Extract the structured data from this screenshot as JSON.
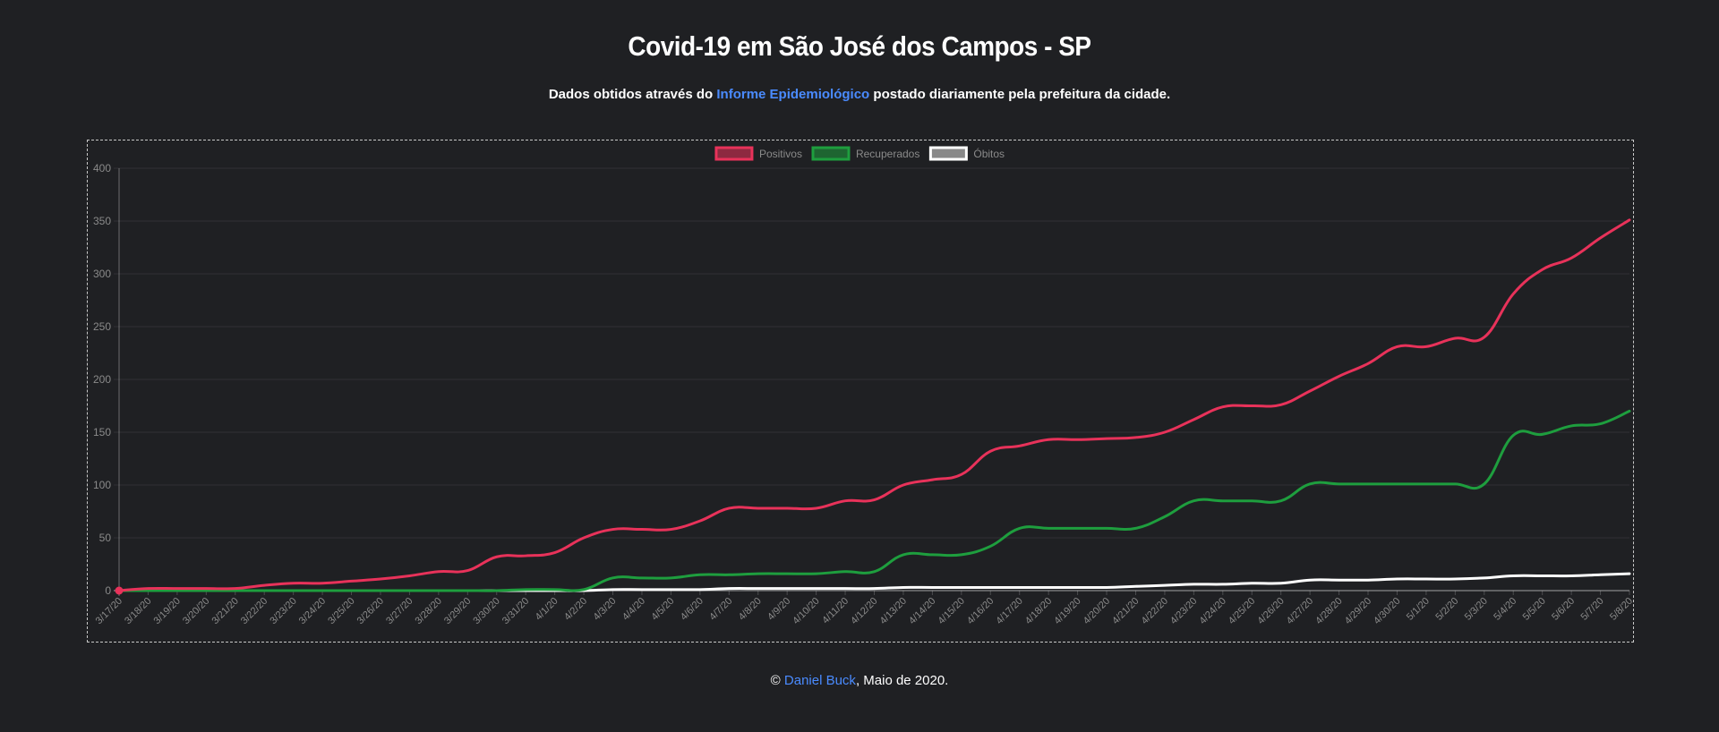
{
  "header": {
    "title": "Covid-19 em São José dos Campos - SP",
    "subtitle_prefix": "Dados obtidos através do ",
    "subtitle_link": "Informe Epidemiológico",
    "subtitle_suffix": " postado diariamente pela prefeitura da cidade."
  },
  "footer": {
    "copyright": "© ",
    "author": "Daniel Buck",
    "date_text": ", Maio de 2020."
  },
  "colors": {
    "background": "#1f2023",
    "link": "#4a8bff",
    "positivos": "#e8325a",
    "recuperados": "#1e9e3e",
    "obitos": "#ffffff"
  },
  "chart_data": {
    "type": "line",
    "title": "",
    "xlabel": "",
    "ylabel": "",
    "ylim": [
      0,
      400
    ],
    "yticks": [
      0,
      50,
      100,
      150,
      200,
      250,
      300,
      350,
      400
    ],
    "grid": true,
    "legend_position": "top-center",
    "categories": [
      "3/17/20",
      "3/18/20",
      "3/19/20",
      "3/20/20",
      "3/21/20",
      "3/22/20",
      "3/23/20",
      "3/24/20",
      "3/25/20",
      "3/26/20",
      "3/27/20",
      "3/28/20",
      "3/29/20",
      "3/30/20",
      "3/31/20",
      "4/1/20",
      "4/2/20",
      "4/3/20",
      "4/4/20",
      "4/5/20",
      "4/6/20",
      "4/7/20",
      "4/8/20",
      "4/9/20",
      "4/10/20",
      "4/11/20",
      "4/12/20",
      "4/13/20",
      "4/14/20",
      "4/15/20",
      "4/16/20",
      "4/17/20",
      "4/18/20",
      "4/19/20",
      "4/20/20",
      "4/21/20",
      "4/22/20",
      "4/23/20",
      "4/24/20",
      "4/25/20",
      "4/26/20",
      "4/27/20",
      "4/28/20",
      "4/29/20",
      "4/30/20",
      "5/1/20",
      "5/2/20",
      "5/3/20",
      "5/4/20",
      "5/5/20",
      "5/6/20",
      "5/7/20",
      "5/8/20"
    ],
    "series": [
      {
        "name": "Positivos",
        "color": "#e8325a",
        "values": [
          0,
          2,
          2,
          2,
          2,
          5,
          7,
          7,
          9,
          11,
          14,
          18,
          19,
          32,
          33,
          36,
          50,
          58,
          58,
          58,
          66,
          78,
          78,
          78,
          78,
          85,
          86,
          100,
          105,
          110,
          132,
          137,
          143,
          143,
          144,
          145,
          150,
          162,
          174,
          175,
          176,
          189,
          203,
          215,
          231,
          231,
          239,
          240,
          281,
          304,
          315,
          334,
          351
        ]
      },
      {
        "name": "Recuperados",
        "color": "#1e9e3e",
        "values": [
          0,
          0,
          0,
          0,
          0,
          0,
          0,
          0,
          0,
          0,
          0,
          0,
          0,
          0,
          1,
          1,
          1,
          12,
          12,
          12,
          15,
          15,
          16,
          16,
          16,
          18,
          18,
          34,
          34,
          34,
          42,
          59,
          59,
          59,
          59,
          59,
          70,
          85,
          85,
          85,
          85,
          101,
          101,
          101,
          101,
          101,
          101,
          101,
          147,
          148,
          156,
          158,
          170
        ]
      },
      {
        "name": "Óbitos",
        "color": "#ffffff",
        "values": [
          0,
          0,
          0,
          0,
          0,
          0,
          0,
          0,
          0,
          0,
          0,
          0,
          0,
          0,
          0,
          0,
          0,
          1,
          1,
          1,
          1,
          2,
          2,
          2,
          2,
          2,
          2,
          3,
          3,
          3,
          3,
          3,
          3,
          3,
          3,
          4,
          5,
          6,
          6,
          7,
          7,
          10,
          10,
          10,
          11,
          11,
          11,
          12,
          14,
          14,
          14,
          15,
          16
        ]
      }
    ]
  }
}
